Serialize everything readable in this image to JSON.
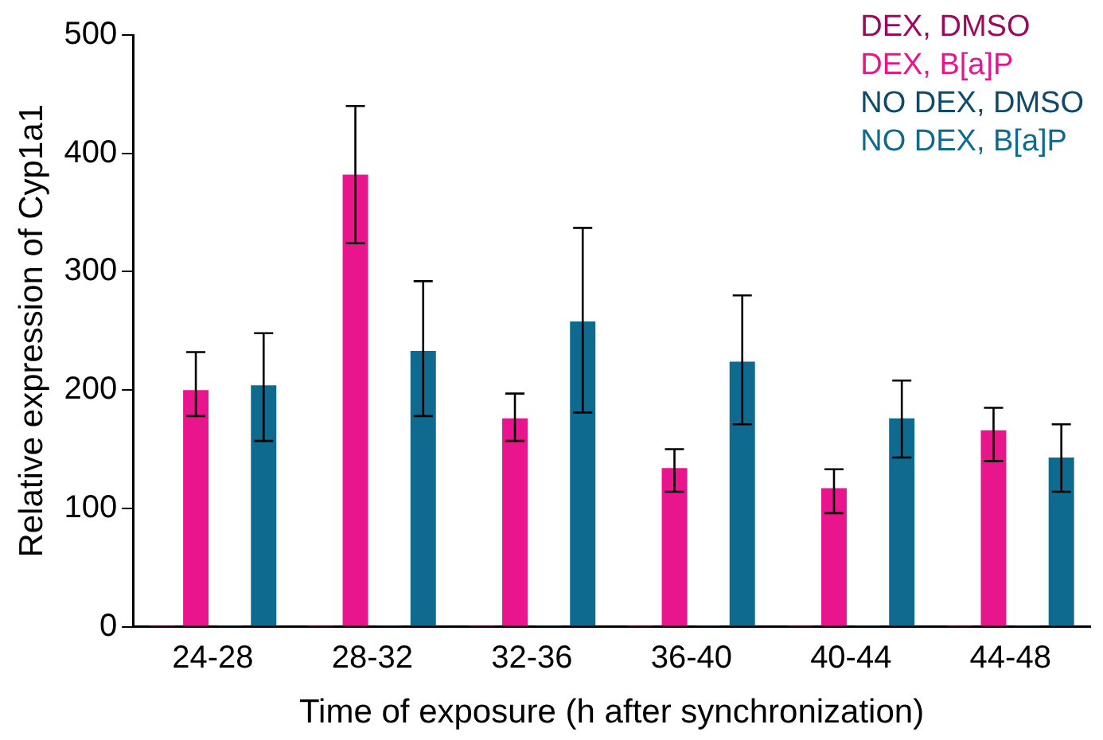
{
  "chart_data": {
    "type": "bar",
    "xlabel": "Time of exposure (h after synchronization)",
    "ylabel": "Relative expression of Cyp1a1",
    "categories": [
      "24-28",
      "28-32",
      "32-36",
      "36-40",
      "40-44",
      "44-48"
    ],
    "series": [
      {
        "name": "DEX, DMSO",
        "color": "#9b0a5e",
        "values": [
          1,
          1,
          1,
          1,
          1,
          1
        ]
      },
      {
        "name": "DEX, B[a]P",
        "color": "#e8158c",
        "values": [
          200,
          382,
          176,
          134,
          117,
          166
        ],
        "errors": [
          [
            178,
            232
          ],
          [
            324,
            440
          ],
          [
            157,
            197
          ],
          [
            114,
            150
          ],
          [
            96,
            133
          ],
          [
            140,
            185
          ]
        ]
      },
      {
        "name": "NO DEX, DMSO",
        "color": "#0d4a6b",
        "values": [
          1,
          1,
          1,
          1,
          1,
          1
        ]
      },
      {
        "name": "NO DEX, B[a]P",
        "color": "#0e6a8e",
        "values": [
          204,
          233,
          258,
          224,
          176,
          143
        ],
        "errors": [
          [
            157,
            248
          ],
          [
            178,
            292
          ],
          [
            181,
            337
          ],
          [
            171,
            280
          ],
          [
            143,
            208
          ],
          [
            114,
            171
          ]
        ]
      }
    ],
    "ylim": [
      0,
      500
    ],
    "yticks": [
      0,
      100,
      200,
      300,
      400,
      500
    ],
    "grid": false,
    "legend": "top right"
  }
}
